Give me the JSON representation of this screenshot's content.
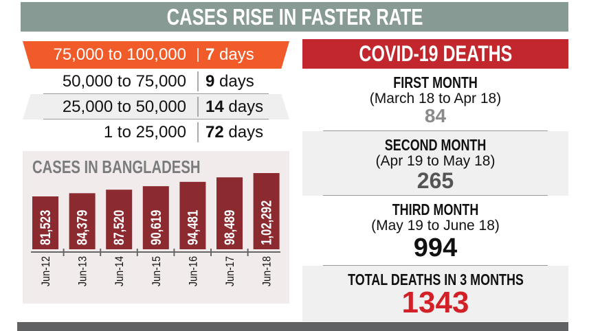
{
  "banner": {
    "title": "CASES RISE IN FASTER RATE"
  },
  "ranges": [
    {
      "range": "75,000 to 100,000",
      "days": "7",
      "unit": "days"
    },
    {
      "range": "50,000 to 75,000",
      "days": "9",
      "unit": "days"
    },
    {
      "range": "25,000 to 50,000",
      "days": "14",
      "unit": "days"
    },
    {
      "range": "1 to 25,000",
      "days": "72",
      "unit": "days"
    }
  ],
  "chart_data": {
    "type": "bar",
    "title": "CASES IN BANGLADESH",
    "categories": [
      "Jun-12",
      "Jun-13",
      "Jun-14",
      "Jun-15",
      "Jun-16",
      "Jun-17",
      "Jun-18"
    ],
    "values": [
      81523,
      84379,
      87520,
      90619,
      94481,
      98489,
      102292
    ],
    "labels": [
      "81,523",
      "84,379",
      "87,520",
      "90,619",
      "94,481",
      "98,489",
      "1,02,292"
    ],
    "grid": false,
    "colors": {
      "bar": "#8b2a2f",
      "background": "#f1eceb",
      "title": "#7a7b7d"
    }
  },
  "deaths": {
    "title": "COVID-19 DEATHS",
    "sections": [
      {
        "label": "FIRST MONTH",
        "period": "(March 18 to Apr 18)",
        "value": "84"
      },
      {
        "label": "SECOND MONTH",
        "period": "(Apr 19 to May 18)",
        "value": "265"
      },
      {
        "label": "THIRD MONTH",
        "period": "(May 19 to June 18)",
        "value": "994"
      }
    ],
    "total": {
      "label": "TOTAL DEATHS IN 3 MONTHS",
      "value": "1343"
    }
  },
  "colors": {
    "banner": "#879a93",
    "highlight": "#f15a29",
    "deaths_header": "#c1272d",
    "total": "#d32027"
  }
}
